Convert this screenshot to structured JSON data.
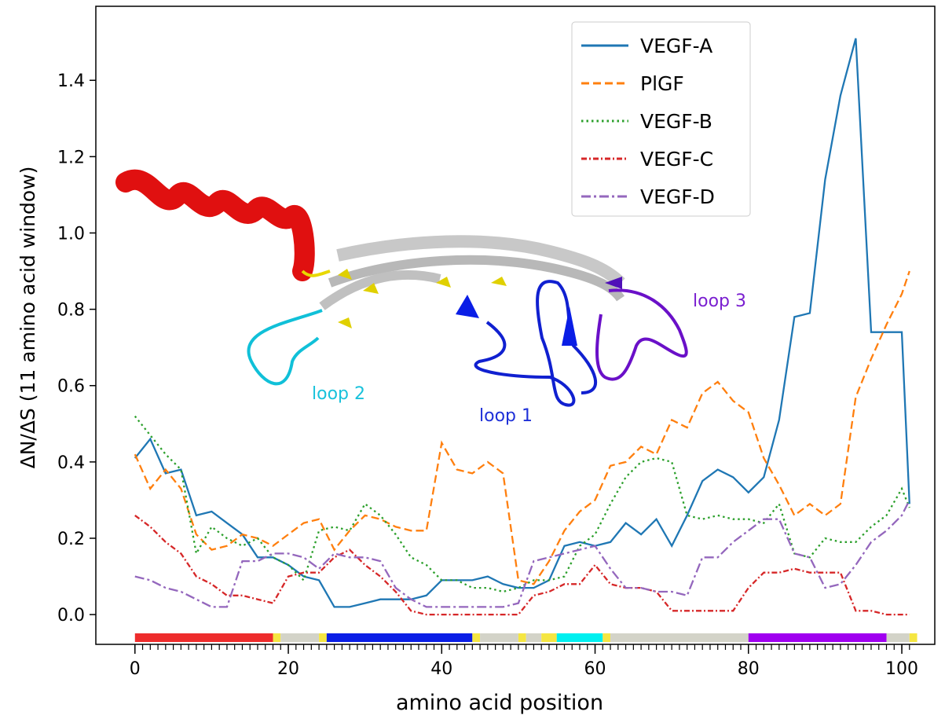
{
  "chart_data": {
    "type": "line",
    "ylabel": "ΔN/ΔS (11 amino acid window)",
    "xlabel": "amino acid position",
    "xlim": [
      -5.1,
      104.3
    ],
    "ylim": [
      -0.078,
      1.594
    ],
    "xticks": [
      0,
      20,
      40,
      60,
      80,
      100
    ],
    "xminorticks": [
      0,
      1,
      2,
      3,
      4,
      5,
      6,
      7,
      8,
      9,
      10,
      11,
      12,
      13,
      14,
      15,
      16,
      17,
      18,
      19,
      20,
      21,
      22,
      23,
      24,
      25,
      26,
      27,
      28,
      29,
      30,
      31,
      32,
      33,
      34,
      35,
      36,
      37,
      38,
      39,
      40,
      41,
      42,
      43,
      44,
      45,
      46,
      47,
      48,
      49,
      50,
      51,
      52,
      53,
      54,
      55,
      56,
      57,
      58,
      59,
      60,
      61,
      62,
      63,
      64,
      65,
      66,
      67,
      68,
      69,
      70,
      71,
      72,
      73,
      74,
      75,
      76,
      77,
      78,
      79,
      80,
      81,
      82,
      83,
      84,
      85,
      86,
      87,
      88,
      89,
      90,
      91,
      92,
      93,
      94,
      95,
      96,
      97,
      98,
      99,
      100,
      101
    ],
    "yticks": [
      {
        "value": 0,
        "label": "0.0"
      },
      0.2,
      0.4,
      0.6,
      0.8,
      {
        "value": 1,
        "label": "1.0"
      },
      1.2,
      1.4
    ],
    "x": [
      0,
      2,
      4,
      6,
      8,
      10,
      12,
      14,
      16,
      18,
      20,
      22,
      24,
      26,
      28,
      30,
      32,
      34,
      36,
      38,
      40,
      42,
      44,
      46,
      48,
      50,
      52,
      54,
      56,
      58,
      60,
      62,
      64,
      66,
      68,
      70,
      72,
      74,
      76,
      78,
      80,
      82,
      84,
      86,
      88,
      90,
      92,
      94,
      96,
      98,
      100,
      101
    ],
    "series": [
      {
        "name": "VEGF-A",
        "color": "#1f77b4",
        "linestyle": "solid",
        "values": [
          0.41,
          0.46,
          0.37,
          0.38,
          0.26,
          0.27,
          0.24,
          0.21,
          0.15,
          0.15,
          0.13,
          0.1,
          0.09,
          0.02,
          0.02,
          0.03,
          0.04,
          0.04,
          0.04,
          0.05,
          0.09,
          0.09,
          0.09,
          0.1,
          0.08,
          0.07,
          0.07,
          0.09,
          0.18,
          0.19,
          0.18,
          0.19,
          0.24,
          0.21,
          0.25,
          0.18,
          0.26,
          0.35,
          0.38,
          0.36,
          0.32,
          0.36,
          0.51,
          0.78,
          0.79,
          1.14,
          1.36,
          1.51,
          0.74,
          0.74,
          0.74,
          0.29
        ]
      },
      {
        "name": "PlGF",
        "color": "#ff7f0e",
        "linestyle": "dashed",
        "values": [
          0.42,
          0.33,
          0.38,
          0.33,
          0.21,
          0.17,
          0.18,
          0.21,
          0.2,
          0.18,
          0.21,
          0.24,
          0.25,
          0.17,
          0.22,
          0.26,
          0.25,
          0.23,
          0.22,
          0.22,
          0.45,
          0.38,
          0.37,
          0.4,
          0.37,
          0.09,
          0.08,
          0.14,
          0.22,
          0.27,
          0.3,
          0.39,
          0.4,
          0.44,
          0.42,
          0.51,
          0.49,
          0.58,
          0.61,
          0.56,
          0.53,
          0.41,
          0.34,
          0.26,
          0.29,
          0.26,
          0.29,
          0.57,
          0.67,
          0.76,
          0.84,
          0.9
        ]
      },
      {
        "name": "VEGF-B",
        "color": "#2ca02c",
        "linestyle": "dotted",
        "values": [
          0.52,
          0.47,
          0.42,
          0.38,
          0.16,
          0.23,
          0.2,
          0.18,
          0.2,
          0.15,
          0.13,
          0.09,
          0.22,
          0.23,
          0.22,
          0.29,
          0.26,
          0.21,
          0.15,
          0.13,
          0.09,
          0.09,
          0.07,
          0.07,
          0.06,
          0.07,
          0.09,
          0.09,
          0.1,
          0.18,
          0.21,
          0.29,
          0.36,
          0.4,
          0.41,
          0.4,
          0.26,
          0.25,
          0.26,
          0.25,
          0.25,
          0.24,
          0.29,
          0.16,
          0.15,
          0.2,
          0.19,
          0.19,
          0.23,
          0.26,
          0.33,
          0.28
        ]
      },
      {
        "name": "VEGF-C",
        "color": "#d62728",
        "linestyle": "densedashdot",
        "values": [
          0.26,
          0.23,
          0.19,
          0.16,
          0.1,
          0.08,
          0.05,
          0.05,
          0.04,
          0.03,
          0.1,
          0.11,
          0.11,
          0.15,
          0.17,
          0.13,
          0.1,
          0.06,
          0.01,
          0,
          0,
          0,
          0,
          0,
          0,
          0,
          0.05,
          0.06,
          0.08,
          0.08,
          0.13,
          0.08,
          0.07,
          0.07,
          0.06,
          0.01,
          0.01,
          0.01,
          0.01,
          0.01,
          0.07,
          0.11,
          0.11,
          0.12,
          0.11,
          0.11,
          0.11,
          0.01,
          0.01,
          0,
          0,
          0
        ]
      },
      {
        "name": "VEGF-D",
        "color": "#9467bd",
        "linestyle": "dashdot",
        "values": [
          0.1,
          0.09,
          0.07,
          0.06,
          0.04,
          0.02,
          0.02,
          0.14,
          0.14,
          0.16,
          0.16,
          0.15,
          0.12,
          0.16,
          0.15,
          0.15,
          0.14,
          0.07,
          0.04,
          0.02,
          0.02,
          0.02,
          0.02,
          0.02,
          0.02,
          0.03,
          0.14,
          0.15,
          0.16,
          0.17,
          0.18,
          0.12,
          0.07,
          0.07,
          0.06,
          0.06,
          0.05,
          0.15,
          0.15,
          0.19,
          0.22,
          0.25,
          0.25,
          0.16,
          0.15,
          0.07,
          0.08,
          0.13,
          0.19,
          0.22,
          0.26,
          0.3
        ]
      }
    ],
    "domains": [
      {
        "start": 0,
        "end": 18,
        "color": "#ee2c2c"
      },
      {
        "start": 18,
        "end": 19,
        "color": "#f5e642"
      },
      {
        "start": 19,
        "end": 24,
        "color": "#d3d3c8"
      },
      {
        "start": 24,
        "end": 25,
        "color": "#f5e642"
      },
      {
        "start": 25,
        "end": 44,
        "color": "#0a1ee6"
      },
      {
        "start": 44,
        "end": 45,
        "color": "#f5e642"
      },
      {
        "start": 45,
        "end": 50,
        "color": "#d3d3c8"
      },
      {
        "start": 50,
        "end": 51,
        "color": "#f5e642"
      },
      {
        "start": 51,
        "end": 53,
        "color": "#d3d3c8"
      },
      {
        "start": 53,
        "end": 55,
        "color": "#f5e642"
      },
      {
        "start": 55,
        "end": 61,
        "color": "#00f0f0"
      },
      {
        "start": 61,
        "end": 62,
        "color": "#f5e642"
      },
      {
        "start": 62,
        "end": 80,
        "color": "#d3d3c8"
      },
      {
        "start": 80,
        "end": 98,
        "color": "#a000f0"
      },
      {
        "start": 98,
        "end": 101,
        "color": "#d3d3c8"
      },
      {
        "start": 101,
        "end": 102,
        "color": "#f5e642"
      }
    ],
    "annotations": [
      {
        "text": "loop 2",
        "color": "#19c2db"
      },
      {
        "text": "loop 1",
        "color": "#1e30d8"
      },
      {
        "text": "loop 3",
        "color": "#7a1fd0"
      }
    ]
  }
}
